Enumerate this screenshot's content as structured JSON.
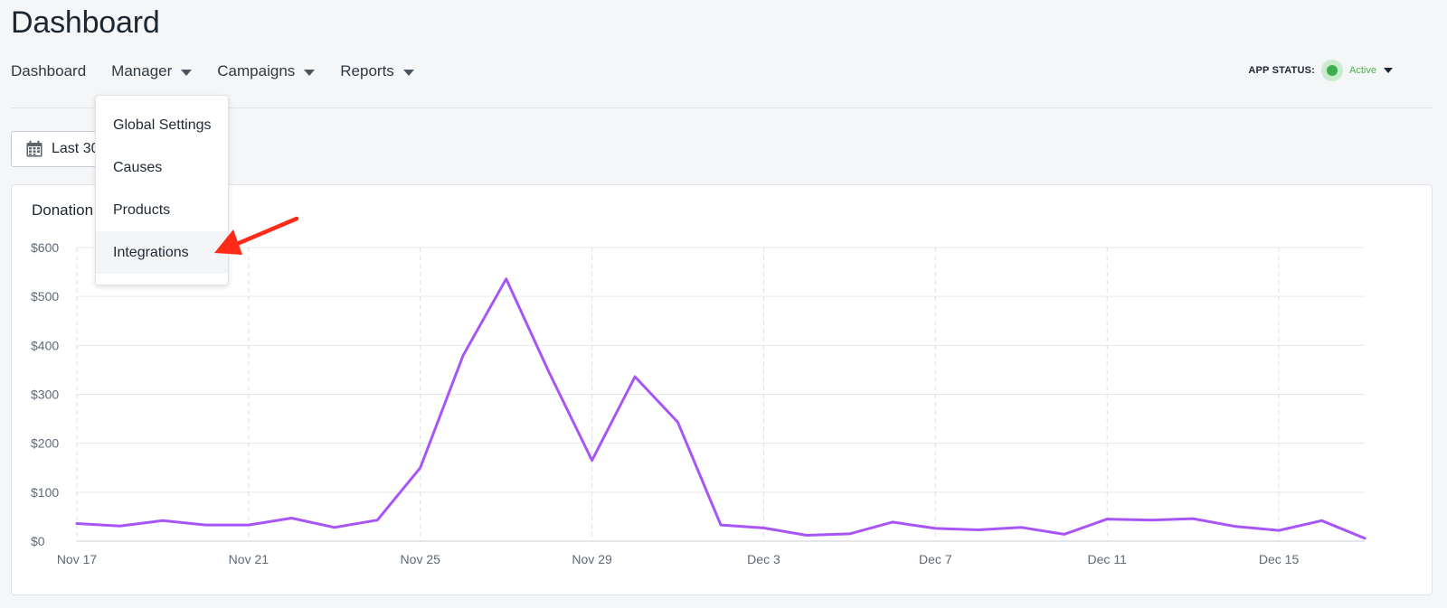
{
  "page": {
    "title": "Dashboard"
  },
  "nav": {
    "items": [
      {
        "label": "Dashboard",
        "has_dropdown": false
      },
      {
        "label": "Manager",
        "has_dropdown": true
      },
      {
        "label": "Campaigns",
        "has_dropdown": true
      },
      {
        "label": "Reports",
        "has_dropdown": true
      }
    ]
  },
  "app_status": {
    "label": "APP STATUS:",
    "value": "Active",
    "color": "#4caf50"
  },
  "date_range": {
    "label": "Last 30",
    "icon": "calendar-icon"
  },
  "manager_menu": {
    "items": [
      "Global Settings",
      "Causes",
      "Products",
      "Integrations"
    ],
    "highlighted": "Integrations"
  },
  "annotation": {
    "icon": "red-arrow-icon",
    "color": "#ff2a17",
    "points_to": "Integrations"
  },
  "card": {
    "title": "Donation"
  },
  "chart_data": {
    "type": "line",
    "title": "Donation",
    "x": [
      "Nov 17",
      "Nov 18",
      "Nov 19",
      "Nov 20",
      "Nov 21",
      "Nov 22",
      "Nov 23",
      "Nov 24",
      "Nov 25",
      "Nov 26",
      "Nov 27",
      "Nov 28",
      "Nov 29",
      "Nov 30",
      "Dec 1",
      "Dec 2",
      "Dec 3",
      "Dec 4",
      "Dec 5",
      "Dec 6",
      "Dec 7",
      "Dec 8",
      "Dec 9",
      "Dec 10",
      "Dec 11",
      "Dec 12",
      "Dec 13",
      "Dec 14",
      "Dec 15",
      "Dec 16",
      "Dec 17"
    ],
    "x_tick_labels": [
      "Nov 17",
      "Nov 21",
      "Nov 25",
      "Nov 29",
      "Dec 3",
      "Dec 7",
      "Dec 11",
      "Dec 15"
    ],
    "y_tick_labels": [
      "$0",
      "$100",
      "$200",
      "$300",
      "$400",
      "$500",
      "$600"
    ],
    "ylim": [
      0,
      600
    ],
    "series": [
      {
        "color": "#a855f7",
        "values": [
          36,
          31,
          42,
          33,
          33,
          47,
          28,
          43,
          150,
          380,
          536,
          345,
          165,
          336,
          243,
          33,
          27,
          12,
          15,
          39,
          26,
          23,
          28,
          14,
          45,
          43,
          46,
          30,
          22,
          42,
          6
        ]
      }
    ],
    "grid": {
      "horizontal": true,
      "vertical": true,
      "vertical_style": "dashed"
    },
    "legend": "none"
  }
}
